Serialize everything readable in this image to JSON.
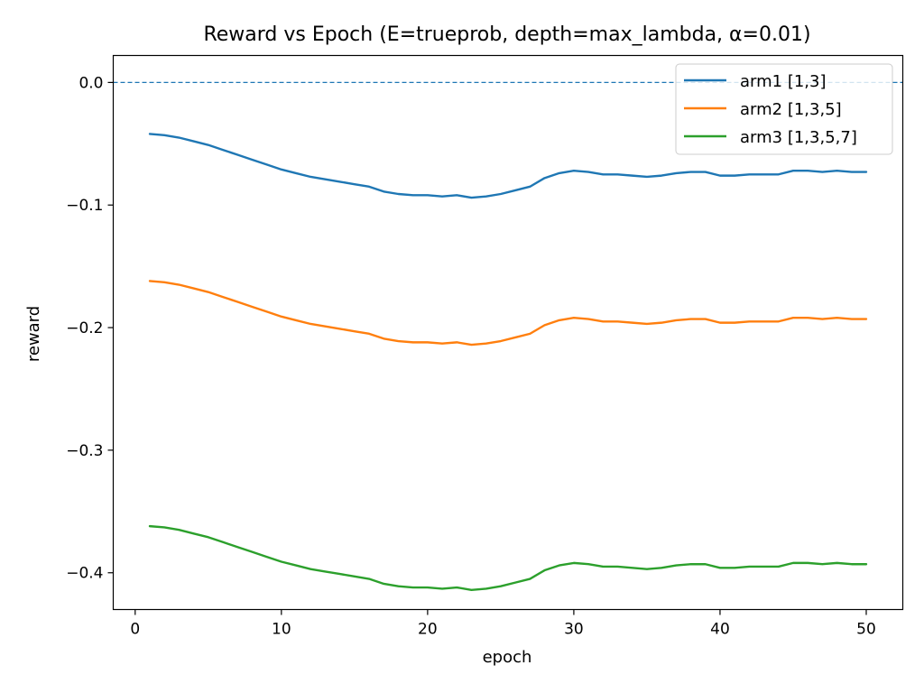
{
  "chart_data": {
    "type": "line",
    "title": "Reward vs Epoch  (E=trueprob, depth=max_lambda, α=0.01)",
    "xlabel": "epoch",
    "ylabel": "reward",
    "xlim": [
      -1.5,
      52.5
    ],
    "ylim": [
      -0.43,
      0.022
    ],
    "xticks": [
      0,
      10,
      20,
      30,
      40,
      50
    ],
    "xtick_labels": [
      "0",
      "10",
      "20",
      "30",
      "40",
      "50"
    ],
    "yticks": [
      0.0,
      -0.1,
      -0.2,
      -0.3,
      -0.4
    ],
    "ytick_labels": [
      "0.0",
      "−0.1",
      "−0.2",
      "−0.3",
      "−0.4"
    ],
    "grid": false,
    "legend_position": "top-right",
    "reference_line": {
      "y": 0.0,
      "style": "dashed",
      "color": "#1f77b4"
    },
    "x": [
      1,
      2,
      3,
      4,
      5,
      6,
      7,
      8,
      9,
      10,
      11,
      12,
      13,
      14,
      15,
      16,
      17,
      18,
      19,
      20,
      21,
      22,
      23,
      24,
      25,
      26,
      27,
      28,
      29,
      30,
      31,
      32,
      33,
      34,
      35,
      36,
      37,
      38,
      39,
      40,
      41,
      42,
      43,
      44,
      45,
      46,
      47,
      48,
      49,
      50
    ],
    "series": [
      {
        "name": "arm1 [1,3]",
        "color": "#1f77b4",
        "values": [
          -0.042,
          -0.043,
          -0.045,
          -0.048,
          -0.051,
          -0.055,
          -0.059,
          -0.063,
          -0.067,
          -0.071,
          -0.074,
          -0.077,
          -0.079,
          -0.081,
          -0.083,
          -0.085,
          -0.089,
          -0.091,
          -0.092,
          -0.092,
          -0.093,
          -0.092,
          -0.094,
          -0.093,
          -0.091,
          -0.088,
          -0.085,
          -0.078,
          -0.074,
          -0.072,
          -0.073,
          -0.075,
          -0.075,
          -0.076,
          -0.077,
          -0.076,
          -0.074,
          -0.073,
          -0.073,
          -0.076,
          -0.076,
          -0.075,
          -0.075,
          -0.075,
          -0.072,
          -0.072,
          -0.073,
          -0.072,
          -0.073,
          -0.073
        ]
      },
      {
        "name": "arm2 [1,3,5]",
        "color": "#ff7f0e",
        "values": [
          -0.162,
          -0.163,
          -0.165,
          -0.168,
          -0.171,
          -0.175,
          -0.179,
          -0.183,
          -0.187,
          -0.191,
          -0.194,
          -0.197,
          -0.199,
          -0.201,
          -0.203,
          -0.205,
          -0.209,
          -0.211,
          -0.212,
          -0.212,
          -0.213,
          -0.212,
          -0.214,
          -0.213,
          -0.211,
          -0.208,
          -0.205,
          -0.198,
          -0.194,
          -0.192,
          -0.193,
          -0.195,
          -0.195,
          -0.196,
          -0.197,
          -0.196,
          -0.194,
          -0.193,
          -0.193,
          -0.196,
          -0.196,
          -0.195,
          -0.195,
          -0.195,
          -0.192,
          -0.192,
          -0.193,
          -0.192,
          -0.193,
          -0.193
        ]
      },
      {
        "name": "arm3 [1,3,5,7]",
        "color": "#2ca02c",
        "values": [
          -0.362,
          -0.363,
          -0.365,
          -0.368,
          -0.371,
          -0.375,
          -0.379,
          -0.383,
          -0.387,
          -0.391,
          -0.394,
          -0.397,
          -0.399,
          -0.401,
          -0.403,
          -0.405,
          -0.409,
          -0.411,
          -0.412,
          -0.412,
          -0.413,
          -0.412,
          -0.414,
          -0.413,
          -0.411,
          -0.408,
          -0.405,
          -0.398,
          -0.394,
          -0.392,
          -0.393,
          -0.395,
          -0.395,
          -0.396,
          -0.397,
          -0.396,
          -0.394,
          -0.393,
          -0.393,
          -0.396,
          -0.396,
          -0.395,
          -0.395,
          -0.395,
          -0.392,
          -0.392,
          -0.393,
          -0.392,
          -0.393,
          -0.393
        ]
      }
    ]
  }
}
